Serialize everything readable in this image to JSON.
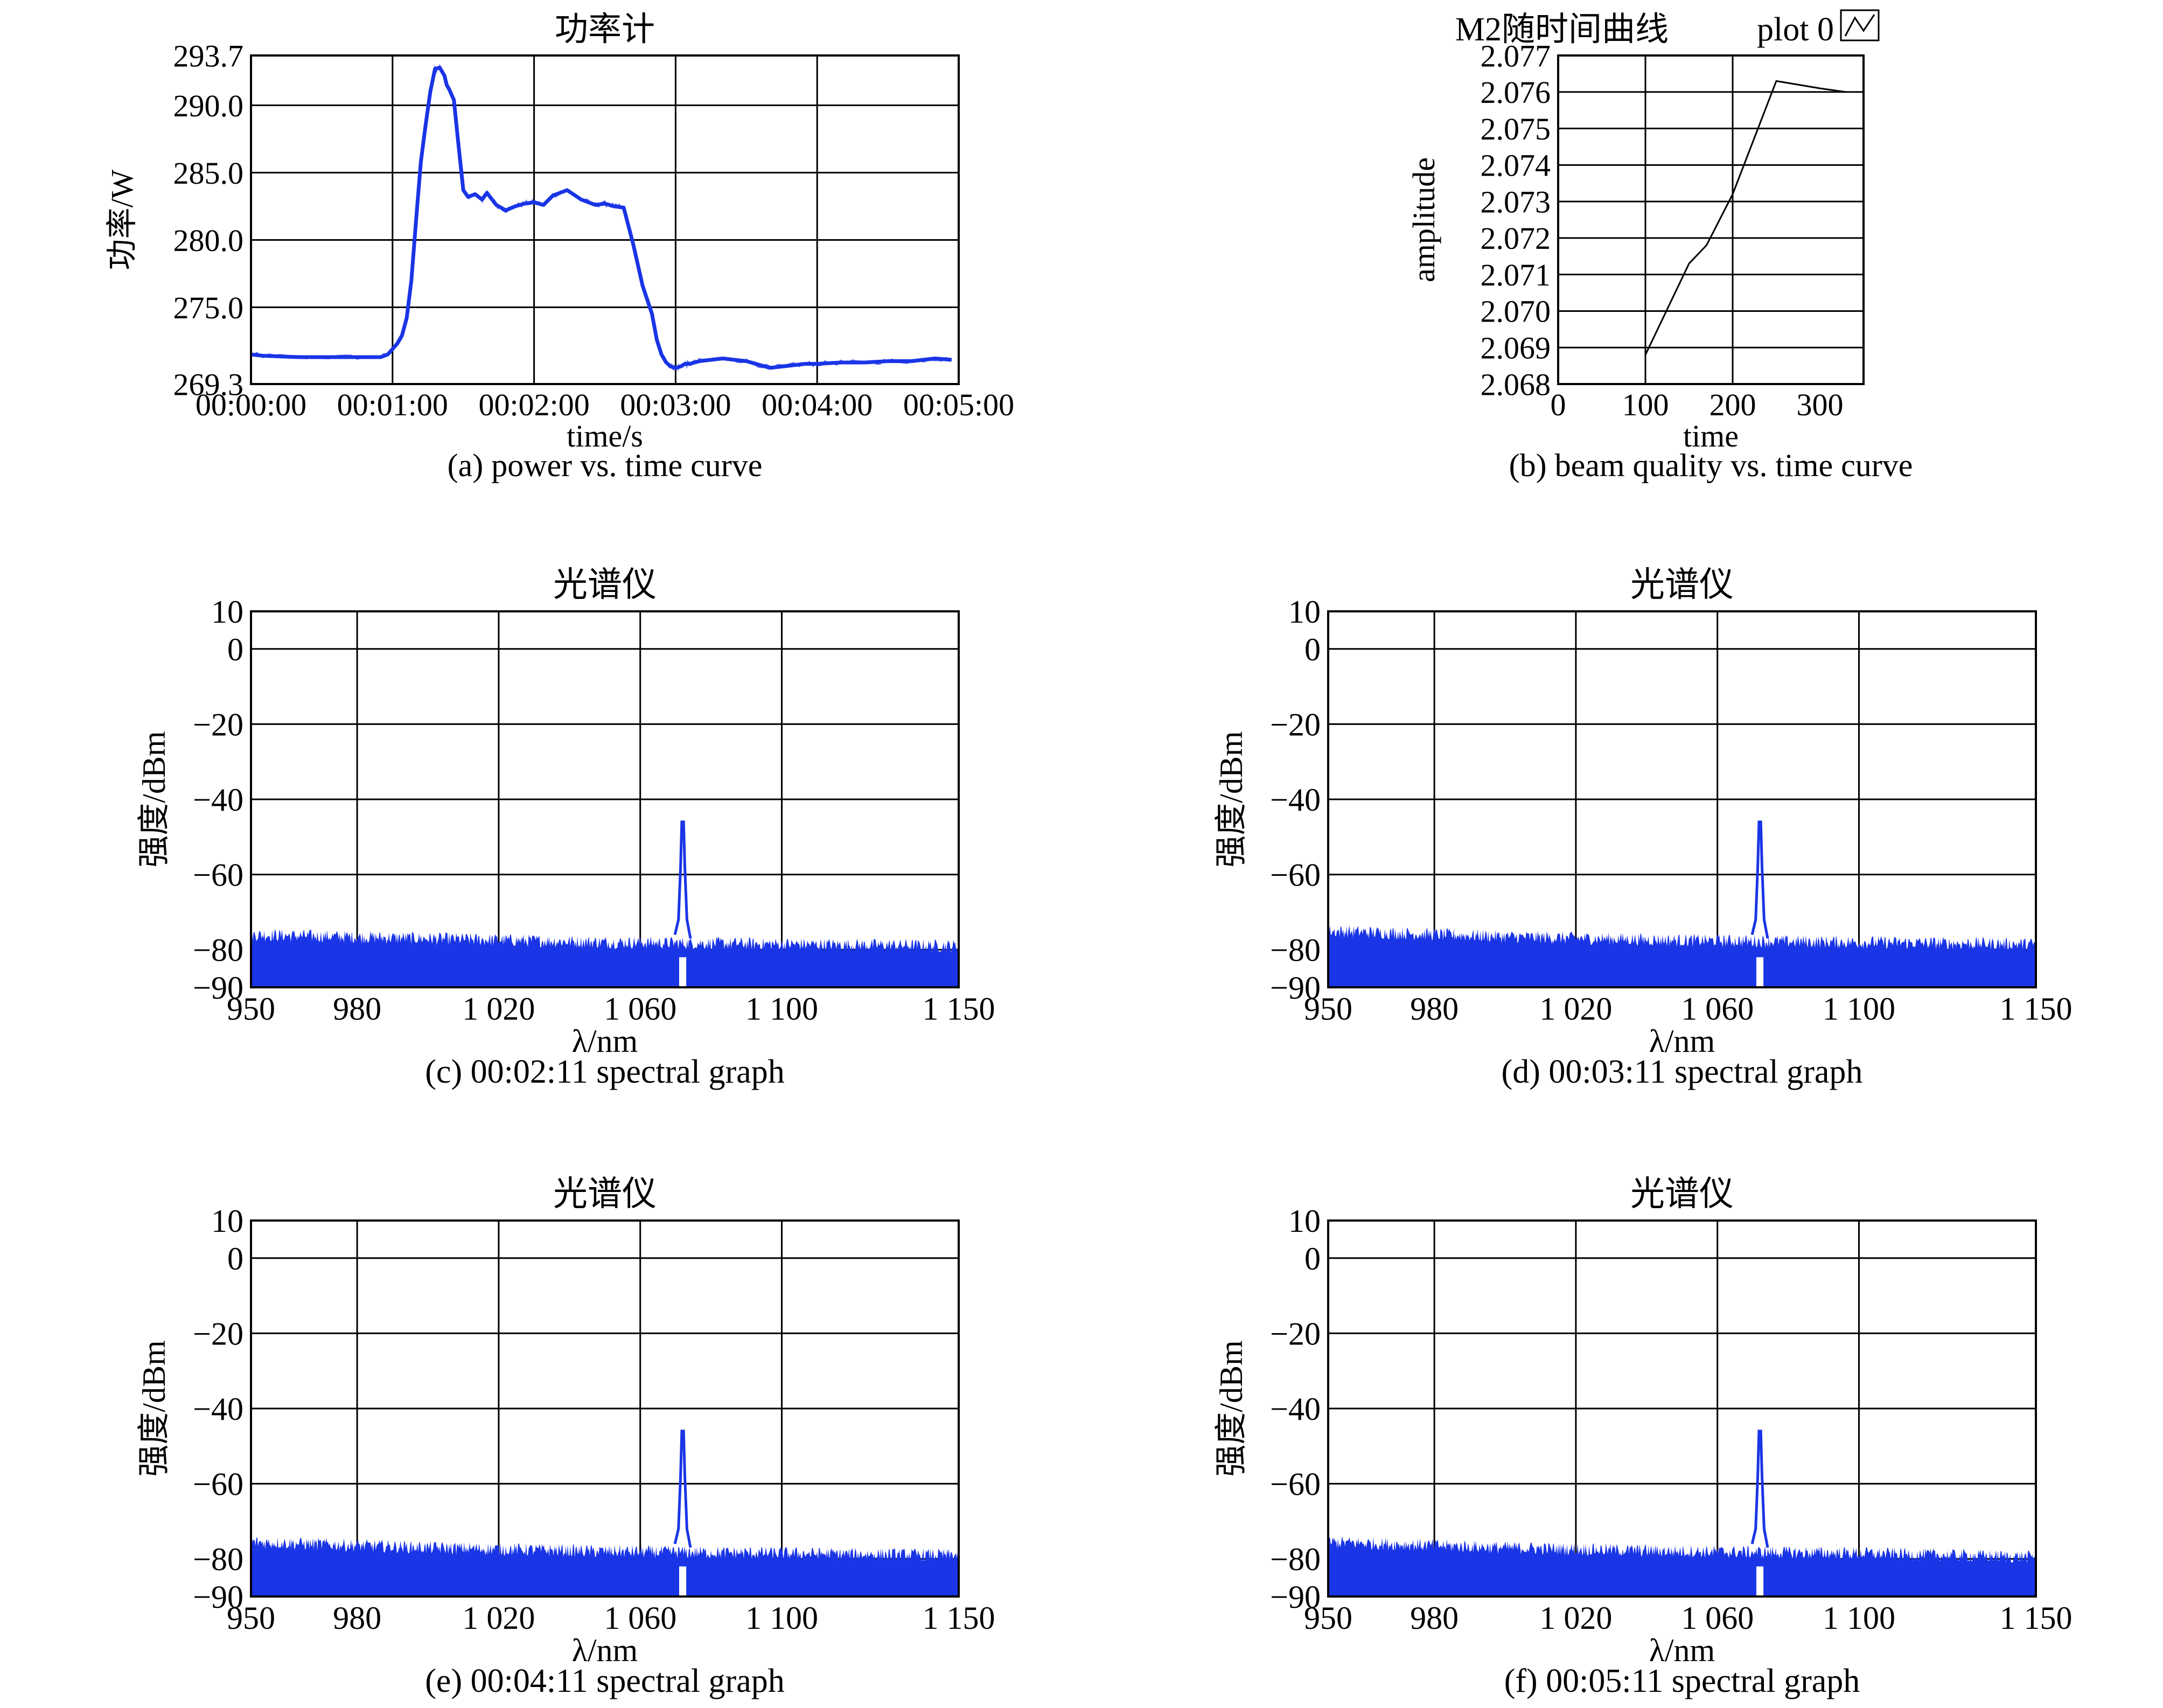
{
  "colors": {
    "trace": "#1a35e6",
    "axis": "#000000",
    "grid": "#000000",
    "m2_line": "#000000"
  },
  "chart_data": [
    {
      "id": "a",
      "type": "line",
      "title": "功率计",
      "caption": "(a) power vs. time curve",
      "xlabel": "time/s",
      "ylabel": "功率/W",
      "x_unit": "seconds",
      "xlim": [
        0,
        300
      ],
      "ylim": [
        269.3,
        293.7
      ],
      "x_ticks": [
        0,
        60,
        120,
        180,
        240,
        300
      ],
      "x_tick_labels": [
        "00:00:00",
        "00:01:00",
        "00:02:00",
        "00:03:00",
        "00:04:00",
        "00:05:00"
      ],
      "y_ticks": [
        269.3,
        275.0,
        280.0,
        285.0,
        290.0,
        293.7
      ],
      "y_tick_labels": [
        "269.3",
        "275.0",
        "280.0",
        "285.0",
        "290.0",
        "293.7"
      ],
      "grid": true,
      "series": [
        {
          "x": [
            0,
            5,
            20,
            40,
            55,
            58,
            62,
            64,
            66,
            68,
            70,
            72,
            74,
            76,
            78,
            80,
            82,
            83,
            84,
            86,
            88,
            90,
            92,
            95,
            98,
            100,
            104,
            108,
            112,
            116,
            120,
            124,
            128,
            134,
            140,
            146,
            150,
            154,
            158,
            162,
            166,
            170,
            172,
            174,
            176,
            178,
            180,
            182,
            184,
            186,
            190,
            200,
            210,
            220,
            230,
            235,
            240,
            250,
            260,
            270,
            280,
            290,
            297
          ],
          "y": [
            271.5,
            271.4,
            271.3,
            271.3,
            271.3,
            271.5,
            272.3,
            272.9,
            274.2,
            277.0,
            281.5,
            285.8,
            288.5,
            291.0,
            292.7,
            292.8,
            292.2,
            291.5,
            291.2,
            290.4,
            287.0,
            283.7,
            283.2,
            283.4,
            283.0,
            283.5,
            282.6,
            282.2,
            282.5,
            282.7,
            282.8,
            282.6,
            283.3,
            283.7,
            283.0,
            282.6,
            282.7,
            282.5,
            282.4,
            279.7,
            276.6,
            274.5,
            272.6,
            271.5,
            270.9,
            270.6,
            270.5,
            270.6,
            270.8,
            270.8,
            271.0,
            271.2,
            271.0,
            270.5,
            270.7,
            270.8,
            270.8,
            270.9,
            270.9,
            271.0,
            271.0,
            271.2,
            271.1
          ]
        }
      ]
    },
    {
      "id": "b",
      "type": "line",
      "title": "M2随时间曲线",
      "legend_label": "plot 0",
      "caption": "(b) beam quality vs. time curve",
      "xlabel": "time",
      "ylabel": "amplitude",
      "xlim": [
        0,
        350
      ],
      "ylim": [
        2.068,
        2.077
      ],
      "x_ticks": [
        0,
        100,
        200,
        300
      ],
      "x_tick_labels": [
        "0",
        "100",
        "200",
        "300"
      ],
      "y_ticks": [
        2.068,
        2.069,
        2.07,
        2.071,
        2.072,
        2.073,
        2.074,
        2.075,
        2.076,
        2.077
      ],
      "y_tick_labels": [
        "2.068",
        "2.069",
        "2.070",
        "2.071",
        "2.072",
        "2.073",
        "2.074",
        "2.075",
        "2.076",
        "2.077"
      ],
      "grid": true,
      "series": [
        {
          "x": [
            100,
            150,
            170,
            200,
            250,
            300,
            330
          ],
          "y": [
            2.0688,
            2.0713,
            2.0718,
            2.0732,
            2.0763,
            2.0761,
            2.076
          ]
        }
      ]
    },
    {
      "id": "c",
      "type": "area",
      "title": "光谱仪",
      "caption": "(c) 00:02:11 spectral graph",
      "xlabel": "λ/nm",
      "ylabel": "强度/dBm",
      "xlim": [
        950,
        1150
      ],
      "ylim": [
        -90,
        10
      ],
      "x_ticks": [
        950,
        980,
        1020,
        1060,
        1100,
        1150
      ],
      "x_tick_labels": [
        "950",
        "980",
        "1 020",
        "1 060",
        "1 100",
        "1 150"
      ],
      "y_ticks": [
        10,
        0,
        -20,
        -40,
        -60,
        -80,
        -90
      ],
      "y_tick_labels": [
        "10",
        "0",
        "−20",
        "−40",
        "−60",
        "−80",
        "−90"
      ],
      "grid": true,
      "noise_floor": {
        "x": [
          950,
          1000,
          1050,
          1100,
          1150
        ],
        "y": [
          -76,
          -77,
          -78,
          -78.5,
          -79
        ]
      },
      "peak": {
        "center": 1072,
        "level": -46,
        "gap": [
          1071,
          1073
        ]
      }
    },
    {
      "id": "d",
      "type": "area",
      "title": "光谱仪",
      "caption": "(d) 00:03:11 spectral graph",
      "xlabel": "λ/nm",
      "ylabel": "强度/dBm",
      "xlim": [
        950,
        1150
      ],
      "ylim": [
        -90,
        10
      ],
      "x_ticks": [
        950,
        980,
        1020,
        1060,
        1100,
        1150
      ],
      "x_tick_labels": [
        "950",
        "980",
        "1 020",
        "1 060",
        "1 100",
        "1 150"
      ],
      "y_ticks": [
        10,
        0,
        -20,
        -40,
        -60,
        -80,
        -90
      ],
      "y_tick_labels": [
        "10",
        "0",
        "−20",
        "−40",
        "−60",
        "−80",
        "−90"
      ],
      "grid": true,
      "noise_floor": {
        "x": [
          950,
          1000,
          1050,
          1100,
          1150
        ],
        "y": [
          -75,
          -76.5,
          -77.5,
          -78,
          -78.5
        ]
      },
      "peak": {
        "center": 1072,
        "level": -46,
        "gap": [
          1071,
          1073
        ]
      }
    },
    {
      "id": "e",
      "type": "area",
      "title": "光谱仪",
      "caption": "(e) 00:04:11 spectral graph",
      "xlabel": "λ/nm",
      "ylabel": "强度/dBm",
      "xlim": [
        950,
        1150
      ],
      "ylim": [
        -90,
        10
      ],
      "x_ticks": [
        950,
        980,
        1020,
        1060,
        1100,
        1150
      ],
      "x_tick_labels": [
        "950",
        "980",
        "1 020",
        "1 060",
        "1 100",
        "1 150"
      ],
      "y_ticks": [
        10,
        0,
        -20,
        -40,
        -60,
        -80,
        -90
      ],
      "y_tick_labels": [
        "10",
        "0",
        "−20",
        "−40",
        "−60",
        "−80",
        "−90"
      ],
      "grid": true,
      "noise_floor": {
        "x": [
          950,
          1000,
          1050,
          1100,
          1150
        ],
        "y": [
          -75.5,
          -77,
          -78,
          -78.5,
          -79
        ]
      },
      "peak": {
        "center": 1072,
        "level": -46,
        "gap": [
          1071,
          1073
        ]
      }
    },
    {
      "id": "f",
      "type": "area",
      "title": "光谱仪",
      "caption": "(f) 00:05:11 spectral graph",
      "xlabel": "λ/nm",
      "ylabel": "强度/dBm",
      "xlim": [
        950,
        1150
      ],
      "ylim": [
        -90,
        10
      ],
      "x_ticks": [
        950,
        980,
        1020,
        1060,
        1100,
        1150
      ],
      "x_tick_labels": [
        "950",
        "980",
        "1 020",
        "1 060",
        "1 100",
        "1 150"
      ],
      "y_ticks": [
        10,
        0,
        -20,
        -40,
        -60,
        -80,
        -90
      ],
      "y_tick_labels": [
        "10",
        "0",
        "−20",
        "−40",
        "−60",
        "−80",
        "−90"
      ],
      "grid": true,
      "noise_floor": {
        "x": [
          950,
          1000,
          1050,
          1100,
          1150
        ],
        "y": [
          -75.5,
          -77,
          -78,
          -78.5,
          -79.5
        ]
      },
      "peak": {
        "center": 1072,
        "level": -46,
        "gap": [
          1071,
          1073
        ]
      }
    }
  ]
}
